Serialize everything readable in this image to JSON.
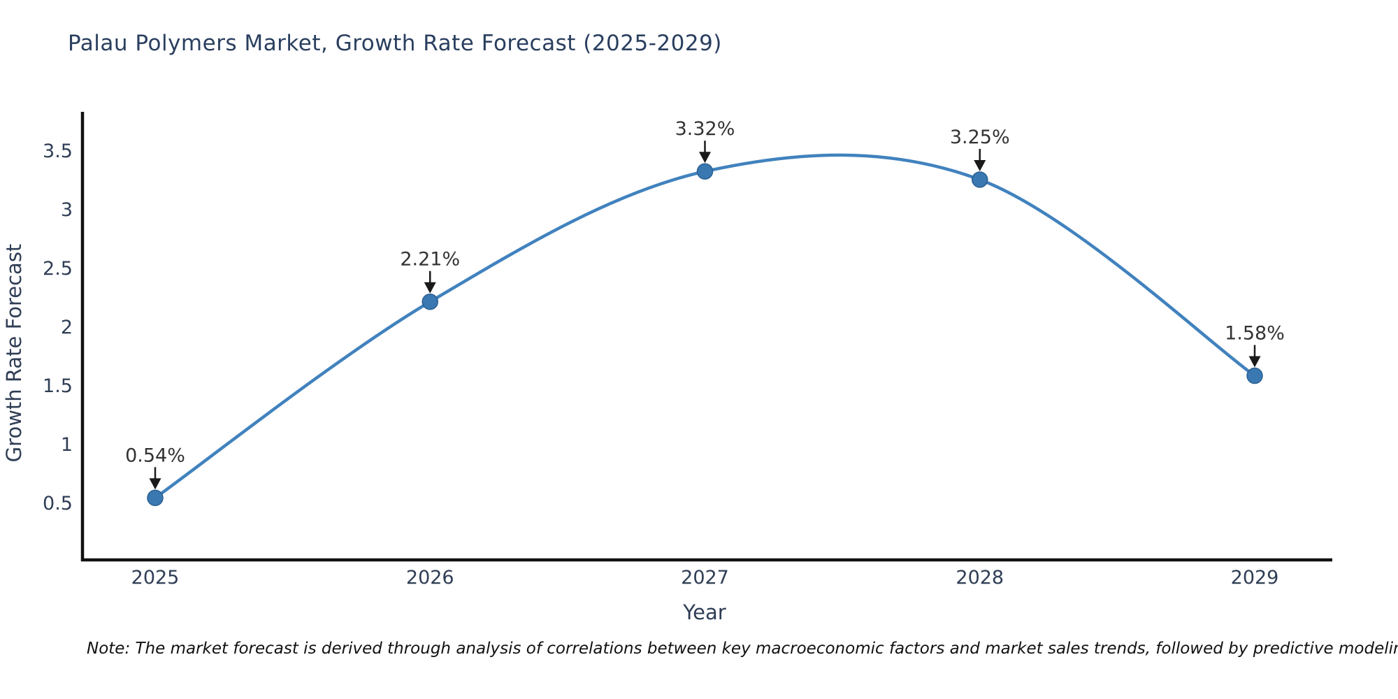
{
  "title": "Palau Polymers Market, Growth Rate Forecast (2025-2029)",
  "note": "Note: The market forecast is derived through analysis of correlations between key macroeconomic factors and market sales trends, followed by predictive modeling to project future sales",
  "chart_data": {
    "type": "line",
    "title": "Palau Polymers Market, Growth Rate Forecast (2025-2029)",
    "xlabel": "Year",
    "ylabel": "Growth Rate Forecast",
    "categories": [
      "2025",
      "2026",
      "2027",
      "2028",
      "2029"
    ],
    "series": [
      {
        "name": "Growth Rate Forecast",
        "values": [
          0.54,
          2.21,
          3.32,
          3.25,
          1.58
        ],
        "point_labels": [
          "0.54%",
          "2.21%",
          "3.32%",
          "3.25%",
          "1.58%"
        ]
      }
    ],
    "y_ticks": [
      0.5,
      1,
      1.5,
      2,
      2.5,
      3,
      3.5
    ],
    "ylim": [
      0.01,
      3.83
    ],
    "line_shape": "spline",
    "markers": true,
    "annotations_arrows": true,
    "grid": false,
    "legend_position": "none",
    "colors": {
      "line": "#4182be",
      "marker": "#3a78b2",
      "marker_border": "#2d6090",
      "axis_line": "#111111",
      "title_text": "#2a3f5f",
      "tick_text": "#2f3d55",
      "axis_title_text": "#2f3d55",
      "point_label_text": "#333333",
      "arrow": "#1a1a1a",
      "background": "#ffffff"
    }
  }
}
